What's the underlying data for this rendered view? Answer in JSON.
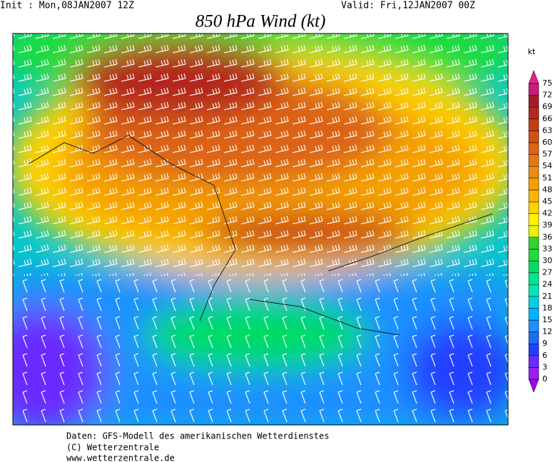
{
  "header": {
    "init": "Init : Mon,08JAN2007 12Z",
    "valid": "Valid: Fri,12JAN2007 00Z",
    "title": "850 hPa Wind (kt)"
  },
  "legend": {
    "unit": "kt",
    "ticks": [
      0,
      3,
      6,
      9,
      12,
      15,
      18,
      21,
      24,
      27,
      30,
      33,
      36,
      39,
      42,
      45,
      48,
      51,
      54,
      57,
      60,
      63,
      66,
      69,
      72,
      75
    ],
    "band_colors": [
      "#9a1ef0",
      "#6a2cff",
      "#2040ff",
      "#1e6ef0",
      "#1e90ff",
      "#00b4ff",
      "#00d2e6",
      "#00e6b4",
      "#00e68c",
      "#00dc64",
      "#1edc3c",
      "#32d232",
      "#e6f00a",
      "#fff000",
      "#ffd200",
      "#ffb400",
      "#f5a000",
      "#eb8c14",
      "#e67814",
      "#dc6414",
      "#d25014",
      "#c83c14",
      "#b4281e",
      "#a01e28",
      "#c81e78"
    ],
    "under_color": "#a000f0",
    "over_color": "#e61e96"
  },
  "footer": {
    "line1": "Daten: GFS-Modell des amerikanischen Wetterdienstes",
    "line2": "(C) Wetterzentrale",
    "line3": "www.wetterzentrale.de"
  }
}
